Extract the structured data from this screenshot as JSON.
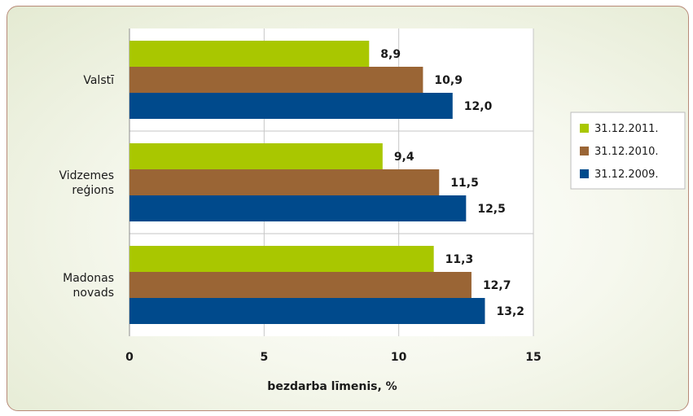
{
  "chart_data": {
    "type": "bar",
    "orientation": "horizontal",
    "categories": [
      "Valstī",
      "Vidzemes reģions",
      "Madonas novads"
    ],
    "category_lines": [
      [
        "Valstī"
      ],
      [
        "Vidzemes",
        "reģions"
      ],
      [
        "Madonas",
        "novads"
      ]
    ],
    "series": [
      {
        "name": "31.12.2011.",
        "color": "#a9c700",
        "values": [
          8.9,
          9.4,
          11.3
        ],
        "labels": [
          "8,9",
          "9,4",
          "11,3"
        ]
      },
      {
        "name": "31.12.2010.",
        "color": "#9a6535",
        "values": [
          10.9,
          11.5,
          12.7
        ],
        "labels": [
          "10,9",
          "11,5",
          "12,7"
        ]
      },
      {
        "name": "31.12.2009.",
        "color": "#004a8c",
        "values": [
          12.0,
          12.5,
          13.2
        ],
        "labels": [
          "12,0",
          "12,5",
          "13,2"
        ]
      }
    ],
    "xlabel": "bezdarba līmenis, %",
    "xlim": [
      0,
      15
    ],
    "xticks": [
      0,
      5,
      10,
      15
    ],
    "grid": true,
    "legend_position": "right"
  }
}
